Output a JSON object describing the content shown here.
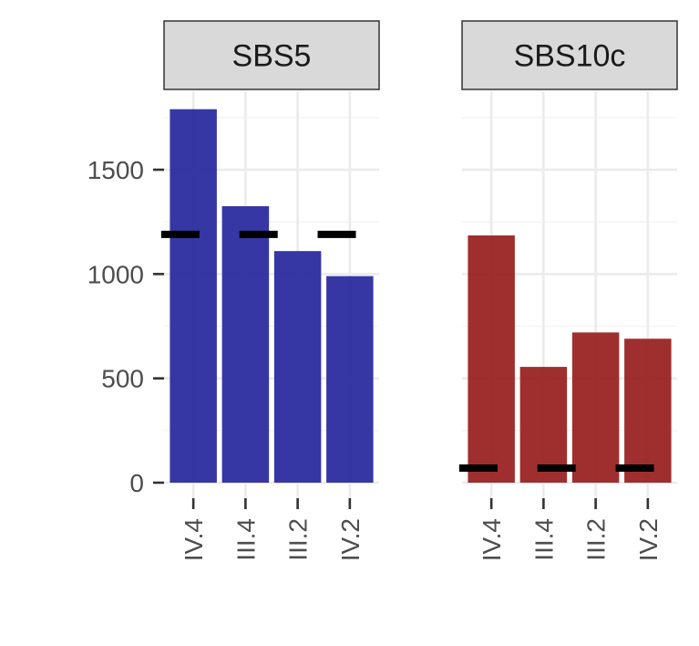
{
  "chart_data": {
    "type": "bar",
    "categories": [
      "IV.4",
      "III.4",
      "III.2",
      "IV.2"
    ],
    "ylim": [
      0,
      1800
    ],
    "y_ticks": [
      0,
      500,
      1000,
      1500
    ],
    "y_tick_labels": [
      "0",
      "500",
      "1000",
      "1500"
    ],
    "grid": true,
    "panels": [
      {
        "label": "SBS5",
        "color": "#2b2ba0",
        "values": [
          1790,
          1325,
          1110,
          990
        ],
        "reference": [
          1190,
          1190,
          1190
        ]
      },
      {
        "label": "SBS10c",
        "color": "#9a2424",
        "values": [
          1185,
          555,
          720,
          690
        ],
        "reference": [
          70,
          70,
          70
        ]
      }
    ]
  }
}
